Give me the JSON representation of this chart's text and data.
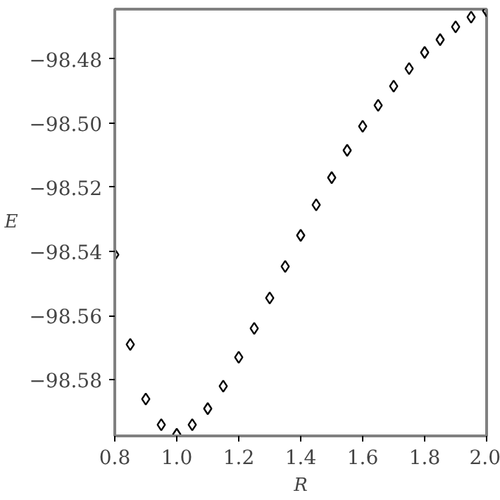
{
  "chart_data": {
    "type": "scatter",
    "xlabel": "R",
    "ylabel": "E",
    "marker": "diamond",
    "x": [
      0.8,
      0.85,
      0.9,
      0.95,
      1.0,
      1.05,
      1.1,
      1.15,
      1.2,
      1.25,
      1.3,
      1.35,
      1.4,
      1.45,
      1.5,
      1.55,
      1.6,
      1.65,
      1.7,
      1.75,
      1.8,
      1.85,
      1.9,
      1.95,
      2.0
    ],
    "series": [
      {
        "color": "#000000",
        "values": [
          -98.541,
          -98.569,
          -98.586,
          -98.594,
          -98.597,
          -98.594,
          -98.589,
          -98.582,
          -98.573,
          -98.564,
          -98.5545,
          -98.5447,
          -98.535,
          -98.5255,
          -98.517,
          -98.5085,
          -98.501,
          -98.4945,
          -98.4885,
          -98.483,
          -98.478,
          -98.474,
          -98.47,
          -98.467,
          -98.465
        ]
      }
    ],
    "xlim": [
      0.8,
      2.0
    ],
    "ylim": [
      -98.5975,
      -98.4645
    ],
    "xticks": [
      0.8,
      {
        "value": 1.0,
        "label": "1.0"
      },
      1.2,
      1.4,
      1.6,
      1.8,
      {
        "value": 2.0,
        "label": "2.0"
      }
    ],
    "yticks": [
      {
        "value": -98.58,
        "label": "−98.58"
      },
      {
        "value": -98.56,
        "label": "−98.56"
      },
      {
        "value": -98.54,
        "label": "−98.54"
      },
      {
        "value": -98.52,
        "label": "−98.52"
      },
      {
        "value": -98.5,
        "label": "−98.50"
      },
      {
        "value": -98.48,
        "label": "−98.48"
      }
    ]
  }
}
